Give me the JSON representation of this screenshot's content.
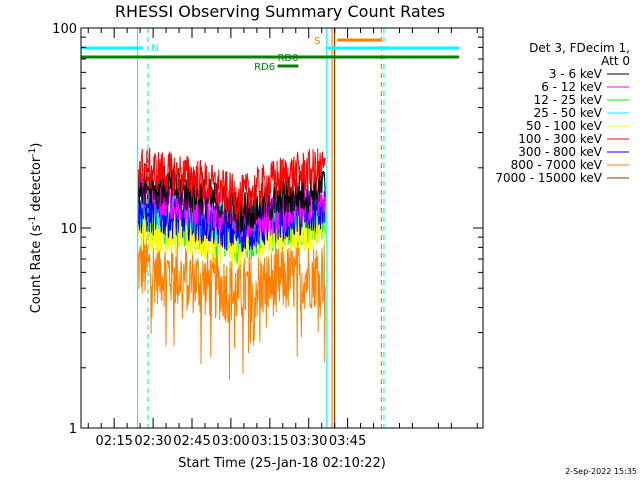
{
  "chart_data": {
    "type": "line",
    "title": "RHESSI Observing Summary Count Rates",
    "xlabel": "Start Time (25-Jan-18 02:10:22)",
    "ylabel_main": "Count Rate (s",
    "ylabel_sup1": "-1",
    "ylabel_mid": " detector",
    "ylabel_sup2": "-1",
    "ylabel_end": ")",
    "y_scale": "log",
    "ylim": [
      1,
      100
    ],
    "xlim_minutes": [
      2.2,
      157.2
    ],
    "x_ticks": [
      {
        "label": "02:15",
        "minute": 15
      },
      {
        "label": "02:30",
        "minute": 30
      },
      {
        "label": "02:45",
        "minute": 45
      },
      {
        "label": "03:00",
        "minute": 60
      },
      {
        "label": "03:15",
        "minute": 75
      },
      {
        "label": "03:30",
        "minute": 90
      },
      {
        "label": "03:45",
        "minute": 105
      }
    ],
    "y_ticks": [
      {
        "label": "1",
        "value": 1
      },
      {
        "label": "10",
        "value": 10
      },
      {
        "label": "100",
        "value": 100
      }
    ],
    "legend_header": [
      "Det 3, FDecim 1,",
      "Att 0"
    ],
    "legend_placement": "right",
    "series": [
      {
        "name": "3 - 6 keV",
        "color": "#000000",
        "base": [
          17,
          15,
          12,
          14,
          16
        ]
      },
      {
        "name": "6 - 12 keV",
        "color": "#ff00ff",
        "base": [
          15,
          13,
          11,
          12,
          14
        ]
      },
      {
        "name": "12 - 25 keV",
        "color": "#00ff00",
        "base": [
          11,
          10,
          8.5,
          10,
          11
        ]
      },
      {
        "name": "25 - 50 keV",
        "color": "#00ffff",
        "base": [
          13,
          12,
          10,
          12,
          13
        ]
      },
      {
        "name": "50 - 100 keV",
        "color": "#ffff00",
        "base": [
          10,
          9,
          8,
          9.5,
          10
        ]
      },
      {
        "name": "100 - 300 keV",
        "color": "#ff0000",
        "base": [
          20,
          18,
          14,
          18,
          20
        ]
      },
      {
        "name": "300 - 800 keV",
        "color": "#0000ff",
        "base": [
          12,
          11,
          9.5,
          11,
          12
        ]
      },
      {
        "name": "800 - 7000 keV",
        "color": "#ff8000",
        "base": [
          6.5,
          5.5,
          4.8,
          5.5,
          6
        ]
      },
      {
        "name": "7000 - 15000 keV",
        "color": "#804000",
        "base": [
          0,
          0,
          0,
          0,
          0
        ]
      }
    ],
    "segment_breakpoints": [
      24,
      45,
      63,
      80,
      96
    ],
    "data_range_minutes": [
      24,
      96.5
    ],
    "annotations": [
      {
        "label": "N",
        "color": "#00ffff",
        "minute": 28.5
      },
      {
        "label": "S",
        "color": "#ff8000",
        "minute": 97.5
      },
      {
        "label": "RD0",
        "color": "#008000"
      },
      {
        "label": "RD6",
        "color": "#008000"
      }
    ],
    "vertical_markers": [
      {
        "minute": 24,
        "color": "#00ffff",
        "style": "solid"
      },
      {
        "minute": 28,
        "color": "#00ffff",
        "style": "dashed"
      },
      {
        "minute": 97,
        "color": "#00ffff",
        "style": "solid"
      },
      {
        "minute": 99,
        "color": "#ff8000",
        "style": "solid"
      },
      {
        "minute": 100,
        "color": "#804000",
        "style": "solid"
      },
      {
        "minute": 118,
        "color": "#ff8000",
        "style": "dashed"
      },
      {
        "minute": 119,
        "color": "#00ffff",
        "style": "dashed"
      }
    ],
    "grid": false
  },
  "footer": {
    "date_stamp": "2-Sep-2022 15:35"
  }
}
